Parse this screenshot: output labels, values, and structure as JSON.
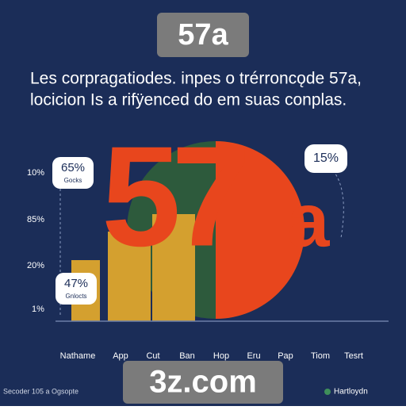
{
  "header": {
    "badge": "57a",
    "headline": [
      "Les corpragatiodes. inpes o trérroncǫde 57a,",
      "locicion Is a rifÿenced do em suas conplas."
    ]
  },
  "chart": {
    "y_labels": [
      "10%",
      "85%",
      "20%",
      "1%"
    ],
    "callouts": [
      {
        "value": "65%",
        "label": "Gocks"
      },
      {
        "value": "47%",
        "label": "Gnlocts"
      },
      {
        "value": "15%"
      }
    ],
    "big_text": [
      "57",
      "a"
    ],
    "x_labels": [
      "Nathame",
      "App",
      "Cut",
      "Ban",
      "Hop",
      "Eru",
      "Pap",
      "Tiom",
      "Tesrt"
    ]
  },
  "footer": {
    "source": "Secoder 105 a Ogsopte",
    "badge": "3z.com",
    "brand": "Hartloydn"
  }
}
